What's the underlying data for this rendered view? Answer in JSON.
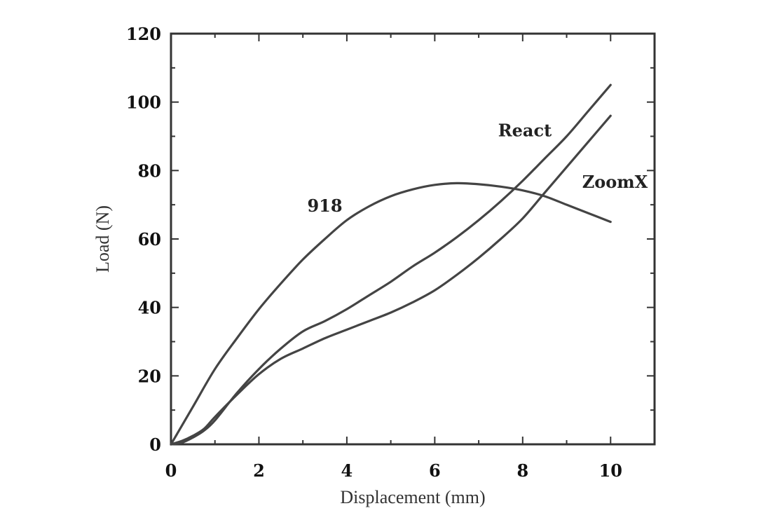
{
  "chart_data": {
    "type": "line",
    "title": "",
    "xlabel": "Displacement (mm)",
    "ylabel": "Load (N)",
    "xlim": [
      0,
      11
    ],
    "ylim": [
      0,
      120
    ],
    "xticks": [
      0,
      2,
      4,
      6,
      8,
      10
    ],
    "yticks": [
      0,
      20,
      40,
      60,
      80,
      100,
      120
    ],
    "xtick_labels": [
      "0",
      "2",
      "4",
      "6",
      "8",
      "10"
    ],
    "ytick_labels": [
      "0",
      "20",
      "40",
      "60",
      "80",
      "100",
      "120"
    ],
    "grid": false,
    "legend": "labels placed next to curves",
    "series": [
      {
        "name": "918",
        "x": [
          0,
          0.5,
          1,
          1.5,
          2,
          2.5,
          3,
          3.5,
          4,
          4.5,
          5,
          5.5,
          6,
          6.5,
          7,
          7.5,
          8,
          8.5,
          9,
          9.5,
          10
        ],
        "y": [
          0,
          11,
          22,
          31,
          39.5,
          47,
          54,
          60,
          65.5,
          69.5,
          72.5,
          74.5,
          75.8,
          76.3,
          76,
          75.3,
          74.2,
          72.5,
          70,
          67.5,
          65
        ]
      },
      {
        "name": "React",
        "x": [
          0,
          0.25,
          0.5,
          0.75,
          1,
          1.5,
          2,
          2.5,
          3,
          3.5,
          4,
          4.5,
          5,
          5.5,
          6,
          6.5,
          7,
          7.5,
          8,
          8.5,
          9,
          9.5,
          10
        ],
        "y": [
          0,
          0.5,
          2,
          4,
          7,
          15,
          22,
          28,
          33,
          36,
          39.5,
          43.5,
          47.5,
          52,
          56,
          60.5,
          65.5,
          71,
          77,
          83.5,
          90,
          97.5,
          105
        ]
      },
      {
        "name": "ZoomX",
        "x": [
          0,
          0.25,
          0.5,
          0.75,
          1,
          1.5,
          2,
          2.5,
          3,
          3.5,
          4,
          4.5,
          5,
          5.5,
          6,
          6.5,
          7,
          7.5,
          8,
          8.5,
          9,
          9.5,
          10
        ],
        "y": [
          0,
          1,
          2.5,
          4.5,
          8,
          14.5,
          20.5,
          25,
          28,
          31,
          33.5,
          36,
          38.5,
          41.5,
          45,
          49.5,
          54.5,
          60,
          66,
          73.5,
          81,
          88.5,
          96
        ]
      }
    ],
    "annotations": [
      {
        "text": "918",
        "x": 3.5,
        "y": 68
      },
      {
        "text": "React",
        "x": 8.05,
        "y": 90
      },
      {
        "text": "ZoomX",
        "x": 10.1,
        "y": 75
      }
    ]
  }
}
